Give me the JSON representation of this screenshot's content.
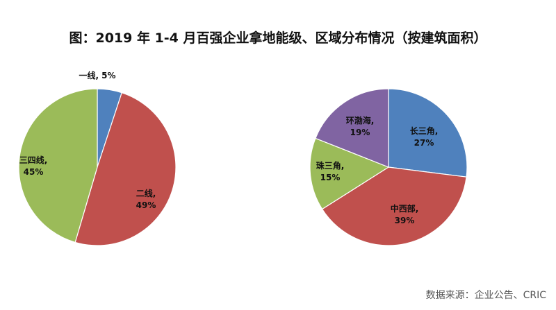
{
  "title": "图：2019 年 1-4 月百强企业拿地能级、区域分布情况（按建筑面积）",
  "source": "数据来源：企业公告、CRIC",
  "colors": {
    "blue": "#4f81bd",
    "red": "#c0504d",
    "green": "#9bbb59",
    "purple": "#8064a2"
  },
  "chart_data": [
    {
      "type": "pie",
      "slices": [
        {
          "name": "一线",
          "value": 5,
          "pct": "5%",
          "color": "#4f81bd"
        },
        {
          "name": "二线",
          "value": 49,
          "pct": "49%",
          "color": "#c0504d"
        },
        {
          "name": "三四线",
          "value": 45,
          "pct": "45%",
          "color": "#9bbb59"
        }
      ]
    },
    {
      "type": "pie",
      "slices": [
        {
          "name": "长三角",
          "value": 27,
          "pct": "27%",
          "color": "#4f81bd"
        },
        {
          "name": "中西部",
          "value": 39,
          "pct": "39%",
          "color": "#c0504d"
        },
        {
          "name": "珠三角",
          "value": 15,
          "pct": "15%",
          "color": "#9bbb59"
        },
        {
          "name": "环渤海",
          "value": 19,
          "pct": "19%",
          "color": "#8064a2"
        }
      ]
    }
  ]
}
